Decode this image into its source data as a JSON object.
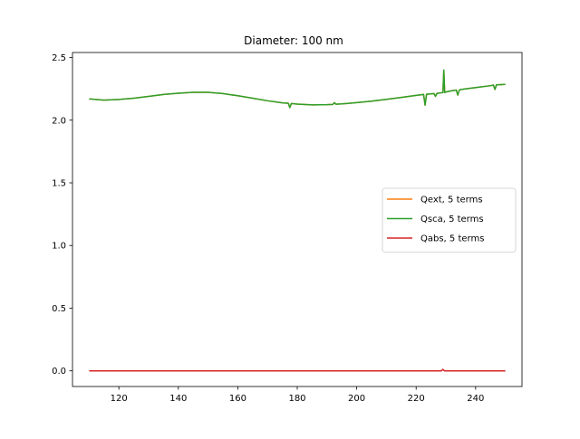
{
  "chart_data": {
    "type": "line",
    "title": "Diameter: 100 nm",
    "xlabel": "",
    "ylabel": "",
    "xlim": [
      104.4,
      255.6
    ],
    "ylim": [
      -0.125,
      2.54
    ],
    "xticks": [
      120,
      140,
      160,
      180,
      200,
      220,
      240
    ],
    "yticks": [
      0.0,
      0.5,
      1.0,
      1.5,
      2.0,
      2.5
    ],
    "xtick_labels": [
      "120",
      "140",
      "160",
      "180",
      "200",
      "220",
      "240"
    ],
    "ytick_labels": [
      "0.0",
      "0.5",
      "1.0",
      "1.5",
      "2.0",
      "2.5"
    ],
    "grid": false,
    "legend_position": "center-right",
    "series": [
      {
        "name": "Qext, 5 terms",
        "color": "#ff7f0e",
        "x": [
          110,
          115,
          120,
          125,
          130,
          135,
          140,
          145,
          150,
          155,
          160,
          165,
          170,
          175,
          177,
          177.5,
          178,
          180,
          185,
          190,
          192,
          192.5,
          193,
          195,
          200,
          205,
          210,
          215,
          220,
          222.5,
          223,
          223.5,
          226,
          226.5,
          227,
          229,
          229.3,
          229.6,
          230,
          231,
          232,
          233.5,
          234,
          234.5,
          235,
          240,
          245,
          246,
          246.5,
          247,
          250
        ],
        "y": [
          2.17,
          2.16,
          2.165,
          2.175,
          2.19,
          2.205,
          2.215,
          2.222,
          2.222,
          2.212,
          2.195,
          2.175,
          2.155,
          2.138,
          2.135,
          2.1,
          2.133,
          2.128,
          2.122,
          2.124,
          2.126,
          2.14,
          2.127,
          2.13,
          2.14,
          2.152,
          2.166,
          2.182,
          2.198,
          2.205,
          2.12,
          2.207,
          2.212,
          2.19,
          2.214,
          2.22,
          2.4,
          2.22,
          2.225,
          2.23,
          2.235,
          2.24,
          2.2,
          2.24,
          2.245,
          2.26,
          2.275,
          2.28,
          2.245,
          2.282,
          2.285
        ]
      },
      {
        "name": "Qsca, 5 terms",
        "color": "#2ca02c",
        "x": [
          110,
          115,
          120,
          125,
          130,
          135,
          140,
          145,
          150,
          155,
          160,
          165,
          170,
          175,
          177,
          177.5,
          178,
          180,
          185,
          190,
          192,
          192.5,
          193,
          195,
          200,
          205,
          210,
          215,
          220,
          222.5,
          223,
          223.5,
          226,
          226.5,
          227,
          229,
          229.3,
          229.6,
          230,
          231,
          232,
          233.5,
          234,
          234.5,
          235,
          240,
          245,
          246,
          246.5,
          247,
          250
        ],
        "y": [
          2.17,
          2.16,
          2.165,
          2.175,
          2.19,
          2.205,
          2.215,
          2.222,
          2.222,
          2.212,
          2.195,
          2.175,
          2.155,
          2.138,
          2.135,
          2.1,
          2.133,
          2.128,
          2.122,
          2.124,
          2.126,
          2.14,
          2.127,
          2.13,
          2.14,
          2.152,
          2.166,
          2.182,
          2.198,
          2.205,
          2.12,
          2.207,
          2.212,
          2.19,
          2.214,
          2.22,
          2.4,
          2.22,
          2.225,
          2.23,
          2.235,
          2.24,
          2.2,
          2.24,
          2.245,
          2.26,
          2.275,
          2.28,
          2.245,
          2.282,
          2.285
        ]
      },
      {
        "name": "Qabs, 5 terms",
        "color": "#d62728",
        "x": [
          110,
          150,
          200,
          228.5,
          229,
          229.5,
          250
        ],
        "y": [
          0.0,
          0.0,
          0.0,
          0.0,
          0.012,
          0.0,
          0.0
        ]
      }
    ]
  }
}
